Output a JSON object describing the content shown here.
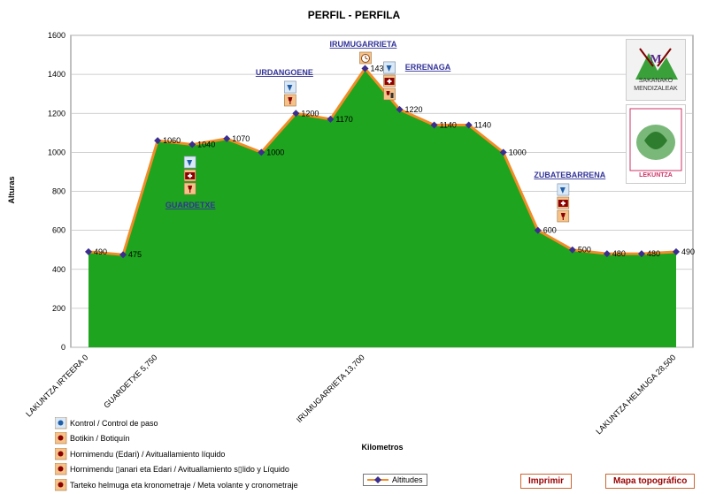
{
  "chart_data": {
    "type": "area",
    "title": "PERFIL - PERFILA",
    "xlabel": "Kilometros",
    "ylabel": "Alturas",
    "ylim": [
      0,
      1600
    ],
    "yticks": [
      0,
      200,
      400,
      600,
      800,
      1000,
      1200,
      1400,
      1600
    ],
    "xtick_labels": [
      "LAKUNTZA IRTEERA 0",
      "GUARDETXE 5,750",
      "IRUMUGARRIETA 13,700",
      "LAKUNTZA HELMUGA 28,500"
    ],
    "xtick_index": [
      0,
      2,
      8,
      17
    ],
    "series": [
      {
        "name": "Altitudes",
        "values": [
          490,
          475,
          1060,
          1040,
          1070,
          1000,
          1200,
          1170,
          1430,
          1220,
          1140,
          1140,
          1000,
          600,
          500,
          480,
          480,
          490
        ]
      }
    ],
    "colors": {
      "area": "#1ea41e",
      "line": "#f28c28",
      "marker": "#3a2f8f",
      "grid": "#c0c0c0"
    },
    "stations": [
      {
        "name": "GUARDETXE",
        "index": 3
      },
      {
        "name": "URDANGOENE",
        "index": 6
      },
      {
        "name": "IRUMUGARRIETA",
        "index": 8
      },
      {
        "name": "ERRENAGA",
        "index": 9
      },
      {
        "name": "ZUBATEBARRENA",
        "index": 14
      }
    ]
  },
  "legend": [
    {
      "icon": "control-icon",
      "label": "Kontrol / Control de paso"
    },
    {
      "icon": "first-aid-icon",
      "label": "Botikin / Botiquín"
    },
    {
      "icon": "water-icon",
      "label": "Hornimendu (Edari) / Avituallamiento líquido"
    },
    {
      "icon": "food-drink-icon",
      "label": "Hornimendu ▯anari eta Edari / Avituallamiento s▯lido y Líquido"
    },
    {
      "icon": "stopwatch-icon",
      "label": "Tarteko helmuga eta kronometraje / Meta volante y cronometraje"
    }
  ],
  "buttons": {
    "print": "Imprimir",
    "map": "Mapa topográfico"
  },
  "logos": {
    "club1": "SAKANAKO MENDIZALEAK",
    "club2": "LEKUNTZA"
  }
}
